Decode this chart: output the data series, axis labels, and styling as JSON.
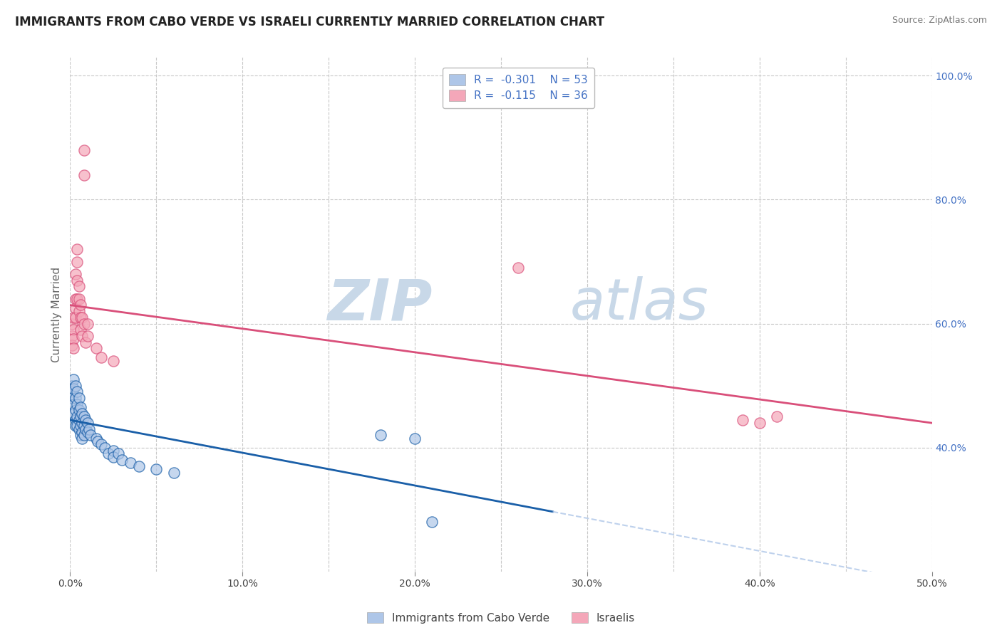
{
  "title": "IMMIGRANTS FROM CABO VERDE VS ISRAELI CURRENTLY MARRIED CORRELATION CHART",
  "source": "Source: ZipAtlas.com",
  "xlabel_bottom": "Immigrants from Cabo Verde",
  "xlabel_right": "Israelis",
  "ylabel": "Currently Married",
  "xlim": [
    0.0,
    0.5
  ],
  "ylim": [
    0.2,
    1.03
  ],
  "xticks": [
    0.0,
    0.1,
    0.2,
    0.3,
    0.4,
    0.5
  ],
  "yticks_right": [
    0.4,
    0.6,
    0.8,
    1.0
  ],
  "ytick_labels_right": [
    "40.0%",
    "60.0%",
    "80.0%",
    "100.0%"
  ],
  "xtick_labels": [
    "0.0%",
    "",
    "10.0%",
    "",
    "20.0%",
    "",
    "30.0%",
    "",
    "40.0%",
    "",
    "50.0%"
  ],
  "xtick_vals": [
    0.0,
    0.05,
    0.1,
    0.15,
    0.2,
    0.25,
    0.3,
    0.35,
    0.4,
    0.45,
    0.5
  ],
  "legend": [
    {
      "color": "#aec6e8",
      "edge": "#6aaed6",
      "R": "-0.301",
      "N": "53"
    },
    {
      "color": "#f4a7b9",
      "edge": "#e07090",
      "R": "-0.115",
      "N": "36"
    }
  ],
  "cabo_verde_points": [
    [
      0.001,
      0.5
    ],
    [
      0.001,
      0.49
    ],
    [
      0.001,
      0.48
    ],
    [
      0.002,
      0.51
    ],
    [
      0.002,
      0.495
    ],
    [
      0.002,
      0.47
    ],
    [
      0.002,
      0.455
    ],
    [
      0.003,
      0.5
    ],
    [
      0.003,
      0.48
    ],
    [
      0.003,
      0.46
    ],
    [
      0.003,
      0.445
    ],
    [
      0.003,
      0.435
    ],
    [
      0.004,
      0.49
    ],
    [
      0.004,
      0.47
    ],
    [
      0.004,
      0.45
    ],
    [
      0.004,
      0.435
    ],
    [
      0.005,
      0.48
    ],
    [
      0.005,
      0.46
    ],
    [
      0.005,
      0.445
    ],
    [
      0.005,
      0.43
    ],
    [
      0.006,
      0.465
    ],
    [
      0.006,
      0.45
    ],
    [
      0.006,
      0.435
    ],
    [
      0.006,
      0.42
    ],
    [
      0.007,
      0.455
    ],
    [
      0.007,
      0.44
    ],
    [
      0.007,
      0.425
    ],
    [
      0.007,
      0.415
    ],
    [
      0.008,
      0.45
    ],
    [
      0.008,
      0.435
    ],
    [
      0.008,
      0.42
    ],
    [
      0.009,
      0.445
    ],
    [
      0.009,
      0.43
    ],
    [
      0.01,
      0.44
    ],
    [
      0.01,
      0.425
    ],
    [
      0.011,
      0.43
    ],
    [
      0.012,
      0.42
    ],
    [
      0.015,
      0.415
    ],
    [
      0.016,
      0.41
    ],
    [
      0.018,
      0.405
    ],
    [
      0.02,
      0.4
    ],
    [
      0.022,
      0.39
    ],
    [
      0.025,
      0.395
    ],
    [
      0.025,
      0.385
    ],
    [
      0.028,
      0.39
    ],
    [
      0.03,
      0.38
    ],
    [
      0.035,
      0.375
    ],
    [
      0.04,
      0.37
    ],
    [
      0.05,
      0.365
    ],
    [
      0.06,
      0.36
    ],
    [
      0.18,
      0.42
    ],
    [
      0.2,
      0.415
    ],
    [
      0.21,
      0.28
    ]
  ],
  "israeli_points": [
    [
      0.001,
      0.6
    ],
    [
      0.001,
      0.58
    ],
    [
      0.001,
      0.565
    ],
    [
      0.002,
      0.61
    ],
    [
      0.002,
      0.59
    ],
    [
      0.002,
      0.575
    ],
    [
      0.002,
      0.56
    ],
    [
      0.003,
      0.64
    ],
    [
      0.003,
      0.625
    ],
    [
      0.003,
      0.61
    ],
    [
      0.003,
      0.68
    ],
    [
      0.004,
      0.7
    ],
    [
      0.004,
      0.72
    ],
    [
      0.004,
      0.67
    ],
    [
      0.004,
      0.64
    ],
    [
      0.005,
      0.66
    ],
    [
      0.005,
      0.64
    ],
    [
      0.005,
      0.62
    ],
    [
      0.006,
      0.63
    ],
    [
      0.006,
      0.61
    ],
    [
      0.006,
      0.59
    ],
    [
      0.007,
      0.61
    ],
    [
      0.007,
      0.58
    ],
    [
      0.008,
      0.6
    ],
    [
      0.008,
      0.88
    ],
    [
      0.008,
      0.84
    ],
    [
      0.009,
      0.57
    ],
    [
      0.01,
      0.6
    ],
    [
      0.01,
      0.58
    ],
    [
      0.015,
      0.56
    ],
    [
      0.018,
      0.545
    ],
    [
      0.025,
      0.54
    ],
    [
      0.26,
      0.69
    ],
    [
      0.39,
      0.445
    ],
    [
      0.4,
      0.44
    ],
    [
      0.41,
      0.45
    ]
  ],
  "blue_line_color": "#1a5fa8",
  "pink_line_color": "#d94f7a",
  "blue_scatter_color": "#aec6e8",
  "pink_scatter_color": "#f4a7b9",
  "grid_color": "#c8c8c8",
  "background_color": "#ffffff",
  "watermark_zip": "ZIP",
  "watermark_atlas": "atlas",
  "watermark_color": "#c8d8e8"
}
